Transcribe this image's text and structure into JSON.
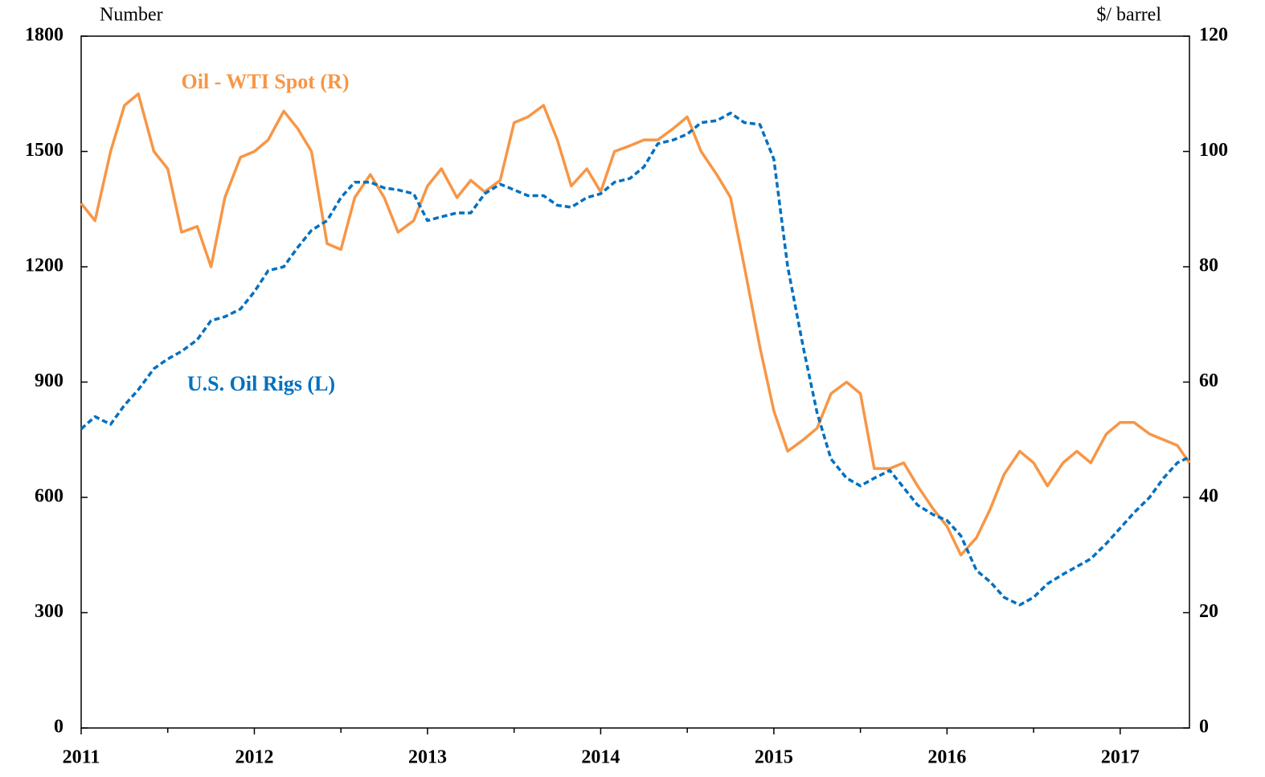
{
  "chart_data": {
    "type": "line",
    "y_label": "Number",
    "y2_label": "$/ barrel",
    "x": [
      2011.0,
      2011.08,
      2011.17,
      2011.25,
      2011.33,
      2011.42,
      2011.5,
      2011.58,
      2011.67,
      2011.75,
      2011.83,
      2011.92,
      2012.0,
      2012.08,
      2012.17,
      2012.25,
      2012.33,
      2012.42,
      2012.5,
      2012.58,
      2012.67,
      2012.75,
      2012.83,
      2012.92,
      2013.0,
      2013.08,
      2013.17,
      2013.25,
      2013.33,
      2013.42,
      2013.5,
      2013.58,
      2013.67,
      2013.75,
      2013.83,
      2013.92,
      2014.0,
      2014.08,
      2014.17,
      2014.25,
      2014.33,
      2014.42,
      2014.5,
      2014.58,
      2014.67,
      2014.75,
      2014.83,
      2014.92,
      2015.0,
      2015.08,
      2015.17,
      2015.25,
      2015.33,
      2015.42,
      2015.5,
      2015.58,
      2015.67,
      2015.75,
      2015.83,
      2015.92,
      2016.0,
      2016.08,
      2016.17,
      2016.25,
      2016.33,
      2016.42,
      2016.5,
      2016.58,
      2016.67,
      2016.75,
      2016.83,
      2016.92,
      2017.0,
      2017.08,
      2017.17,
      2017.25,
      2017.33,
      2017.4
    ],
    "series": [
      {
        "name": "Oil - WTI Spot (R)",
        "color": "#f79646",
        "axis": "y2",
        "dash": false,
        "values": [
          91,
          88,
          100,
          108,
          110,
          100,
          97,
          86,
          87,
          80,
          92,
          99,
          100,
          102,
          107,
          104,
          100,
          84,
          83,
          92,
          96,
          92,
          86,
          88,
          94,
          97,
          92,
          95,
          93,
          95,
          105,
          106,
          108,
          102,
          94,
          97,
          93,
          100,
          101,
          102,
          102,
          104,
          106,
          100,
          96,
          92,
          80,
          66,
          55,
          48,
          50,
          52,
          58,
          60,
          58,
          45,
          45,
          46,
          42,
          38,
          35,
          30,
          33,
          38,
          44,
          48,
          46,
          42,
          46,
          48,
          46,
          51,
          53,
          53,
          51,
          50,
          49,
          46
        ]
      },
      {
        "name": "U.S. Oil Rigs (L)",
        "color": "#0070c0",
        "axis": "y",
        "dash": true,
        "values": [
          778,
          810,
          790,
          840,
          880,
          935,
          960,
          980,
          1010,
          1060,
          1070,
          1090,
          1135,
          1190,
          1200,
          1250,
          1295,
          1320,
          1380,
          1420,
          1420,
          1405,
          1400,
          1390,
          1320,
          1330,
          1340,
          1340,
          1390,
          1415,
          1400,
          1385,
          1385,
          1360,
          1355,
          1380,
          1390,
          1420,
          1430,
          1460,
          1520,
          1530,
          1545,
          1575,
          1580,
          1600,
          1575,
          1570,
          1480,
          1200,
          990,
          820,
          700,
          650,
          630,
          650,
          670,
          625,
          580,
          555,
          540,
          500,
          410,
          380,
          340,
          320,
          340,
          375,
          400,
          420,
          440,
          480,
          520,
          560,
          600,
          650,
          690,
          705
        ]
      }
    ],
    "xlim": [
      2011,
      2017.4
    ],
    "xticks": [
      2011,
      2012,
      2013,
      2014,
      2015,
      2016,
      2017
    ],
    "xminorticks": [
      2011.5,
      2012.5,
      2013.5,
      2014.5,
      2015.5,
      2016.5
    ],
    "ylim": [
      0,
      1800
    ],
    "yticks": [
      0,
      300,
      600,
      900,
      1200,
      1500,
      1800
    ],
    "y2lim": [
      0,
      120
    ],
    "y2ticks": [
      0,
      20,
      40,
      60,
      80,
      100,
      120
    ]
  }
}
